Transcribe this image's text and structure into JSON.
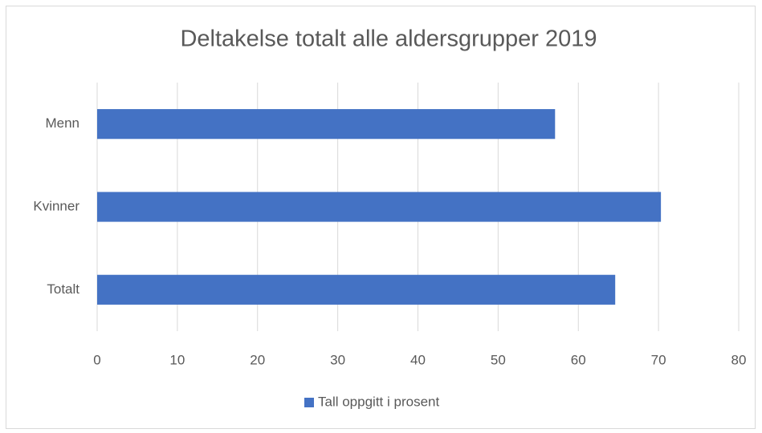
{
  "chart_data": {
    "type": "hbar",
    "title": "Deltakelse totalt alle aldersgrupper 2019",
    "categories": [
      "Menn",
      "Kvinner",
      "Totalt"
    ],
    "series": [
      {
        "name": "Tall oppgitt i prosent",
        "color": "#4472c4",
        "values": [
          57.1,
          70.3,
          64.6
        ]
      }
    ],
    "xlim": [
      0,
      80
    ],
    "xticks": [
      0,
      10,
      20,
      30,
      40,
      50,
      60,
      70,
      80
    ],
    "grid": true,
    "legend": "bottom"
  }
}
